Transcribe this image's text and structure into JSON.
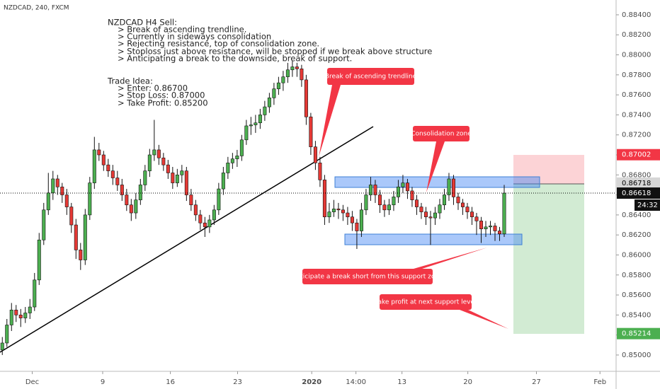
{
  "header": {
    "symbol": "NZDCAD, 240, FXCM"
  },
  "chart_data": {
    "type": "candlestick",
    "ohlc": [
      [
        0.8505,
        0.8518,
        0.85,
        0.8512
      ],
      [
        0.8512,
        0.8536,
        0.8508,
        0.853
      ],
      [
        0.853,
        0.8552,
        0.8524,
        0.8545
      ],
      [
        0.8545,
        0.855,
        0.8533,
        0.854
      ],
      [
        0.854,
        0.8546,
        0.8528,
        0.8537
      ],
      [
        0.8537,
        0.8548,
        0.8532,
        0.8542
      ],
      [
        0.8542,
        0.8556,
        0.8536,
        0.8548
      ],
      [
        0.8548,
        0.8582,
        0.8544,
        0.8575
      ],
      [
        0.8575,
        0.8622,
        0.857,
        0.8615
      ],
      [
        0.8615,
        0.8652,
        0.861,
        0.8645
      ],
      [
        0.8645,
        0.8682,
        0.864,
        0.8662
      ],
      [
        0.8662,
        0.8684,
        0.8655,
        0.8676
      ],
      [
        0.8676,
        0.868,
        0.866,
        0.8668
      ],
      [
        0.8668,
        0.8672,
        0.8652,
        0.866
      ],
      [
        0.866,
        0.8666,
        0.864,
        0.8648
      ],
      [
        0.8648,
        0.8652,
        0.8622,
        0.863
      ],
      [
        0.863,
        0.8636,
        0.8596,
        0.8605
      ],
      [
        0.8605,
        0.8612,
        0.8585,
        0.8595
      ],
      [
        0.8595,
        0.8646,
        0.859,
        0.864
      ],
      [
        0.864,
        0.8678,
        0.8635,
        0.8672
      ],
      [
        0.8672,
        0.8718,
        0.8666,
        0.8705
      ],
      [
        0.8705,
        0.8712,
        0.8694,
        0.87
      ],
      [
        0.87,
        0.8704,
        0.8684,
        0.869
      ],
      [
        0.869,
        0.8696,
        0.8678,
        0.8684
      ],
      [
        0.8684,
        0.869,
        0.867,
        0.8677
      ],
      [
        0.8677,
        0.8684,
        0.8664,
        0.867
      ],
      [
        0.867,
        0.8676,
        0.8654,
        0.866
      ],
      [
        0.866,
        0.8666,
        0.8644,
        0.865
      ],
      [
        0.865,
        0.8656,
        0.8634,
        0.8642
      ],
      [
        0.8642,
        0.8662,
        0.8636,
        0.8655
      ],
      [
        0.8655,
        0.8676,
        0.865,
        0.867
      ],
      [
        0.867,
        0.869,
        0.8664,
        0.8684
      ],
      [
        0.8684,
        0.8706,
        0.8678,
        0.87
      ],
      [
        0.87,
        0.8735,
        0.8694,
        0.8705
      ],
      [
        0.8705,
        0.871,
        0.869,
        0.8697
      ],
      [
        0.8697,
        0.8702,
        0.8684,
        0.869
      ],
      [
        0.869,
        0.8695,
        0.8676,
        0.8682
      ],
      [
        0.8682,
        0.8688,
        0.8666,
        0.8672
      ],
      [
        0.8672,
        0.8686,
        0.8668,
        0.868
      ],
      [
        0.868,
        0.869,
        0.8672,
        0.8684
      ],
      [
        0.8684,
        0.8688,
        0.8654,
        0.866
      ],
      [
        0.866,
        0.8666,
        0.8644,
        0.865
      ],
      [
        0.865,
        0.8655,
        0.8634,
        0.864
      ],
      [
        0.864,
        0.8645,
        0.8625,
        0.8632
      ],
      [
        0.8632,
        0.8638,
        0.8618,
        0.8628
      ],
      [
        0.8628,
        0.864,
        0.8622,
        0.8635
      ],
      [
        0.8635,
        0.865,
        0.863,
        0.8645
      ],
      [
        0.8645,
        0.8672,
        0.864,
        0.8666
      ],
      [
        0.8666,
        0.8688,
        0.866,
        0.8682
      ],
      [
        0.8682,
        0.8698,
        0.8676,
        0.8692
      ],
      [
        0.8692,
        0.8702,
        0.8686,
        0.8696
      ],
      [
        0.8696,
        0.8705,
        0.8688,
        0.8699
      ],
      [
        0.8699,
        0.872,
        0.8694,
        0.8715
      ],
      [
        0.8715,
        0.8735,
        0.871,
        0.8729
      ],
      [
        0.8729,
        0.8738,
        0.872,
        0.873
      ],
      [
        0.873,
        0.874,
        0.8722,
        0.8732
      ],
      [
        0.8732,
        0.8746,
        0.8726,
        0.874
      ],
      [
        0.874,
        0.8754,
        0.8734,
        0.8748
      ],
      [
        0.8748,
        0.8762,
        0.8742,
        0.8757
      ],
      [
        0.8757,
        0.8772,
        0.875,
        0.8766
      ],
      [
        0.8766,
        0.8778,
        0.876,
        0.8772
      ],
      [
        0.8772,
        0.8784,
        0.8764,
        0.8778
      ],
      [
        0.8778,
        0.8792,
        0.8772,
        0.8785
      ],
      [
        0.8785,
        0.8794,
        0.8778,
        0.8788
      ],
      [
        0.8788,
        0.8792,
        0.8778,
        0.8786
      ],
      [
        0.8786,
        0.879,
        0.8768,
        0.8775
      ],
      [
        0.8775,
        0.878,
        0.873,
        0.8738
      ],
      [
        0.8738,
        0.8742,
        0.87,
        0.8708
      ],
      [
        0.8708,
        0.8714,
        0.8685,
        0.8692
      ],
      [
        0.8692,
        0.8698,
        0.8668,
        0.8675
      ],
      [
        0.8675,
        0.868,
        0.863,
        0.8638
      ],
      [
        0.8638,
        0.8652,
        0.8632,
        0.8643
      ],
      [
        0.8643,
        0.8655,
        0.8638,
        0.8646
      ],
      [
        0.8646,
        0.8652,
        0.8636,
        0.8645
      ],
      [
        0.8645,
        0.865,
        0.8634,
        0.8642
      ],
      [
        0.8642,
        0.8648,
        0.863,
        0.8638
      ],
      [
        0.8638,
        0.8644,
        0.8624,
        0.8632
      ],
      [
        0.8632,
        0.8636,
        0.8606,
        0.8624
      ],
      [
        0.8624,
        0.8652,
        0.8618,
        0.8645
      ],
      [
        0.8645,
        0.8666,
        0.864,
        0.866
      ],
      [
        0.866,
        0.8678,
        0.8654,
        0.867
      ],
      [
        0.867,
        0.8675,
        0.8652,
        0.866
      ],
      [
        0.866,
        0.8665,
        0.8642,
        0.865
      ],
      [
        0.865,
        0.8655,
        0.8638,
        0.8645
      ],
      [
        0.8645,
        0.8656,
        0.864,
        0.865
      ],
      [
        0.865,
        0.8664,
        0.8644,
        0.8658
      ],
      [
        0.8658,
        0.8675,
        0.8652,
        0.8668
      ],
      [
        0.8668,
        0.868,
        0.8662,
        0.8672
      ],
      [
        0.8672,
        0.8676,
        0.8656,
        0.8664
      ],
      [
        0.8664,
        0.8668,
        0.8648,
        0.8655
      ],
      [
        0.8655,
        0.866,
        0.864,
        0.8648
      ],
      [
        0.8648,
        0.8652,
        0.8636,
        0.8643
      ],
      [
        0.8643,
        0.8648,
        0.863,
        0.8638
      ],
      [
        0.8638,
        0.8644,
        0.861,
        0.8637
      ],
      [
        0.8637,
        0.8648,
        0.863,
        0.8642
      ],
      [
        0.8642,
        0.8656,
        0.8636,
        0.865
      ],
      [
        0.865,
        0.8666,
        0.8645,
        0.866
      ],
      [
        0.866,
        0.8682,
        0.8654,
        0.8676
      ],
      [
        0.8676,
        0.868,
        0.865,
        0.8658
      ],
      [
        0.8658,
        0.8662,
        0.8645,
        0.8652
      ],
      [
        0.8652,
        0.8656,
        0.864,
        0.8648
      ],
      [
        0.8648,
        0.8652,
        0.8636,
        0.8643
      ],
      [
        0.8643,
        0.8648,
        0.863,
        0.8638
      ],
      [
        0.8638,
        0.8642,
        0.862,
        0.8634
      ],
      [
        0.8634,
        0.8638,
        0.8612,
        0.8626
      ],
      [
        0.8626,
        0.8634,
        0.8618,
        0.8628
      ],
      [
        0.8628,
        0.8634,
        0.862,
        0.8629
      ],
      [
        0.8629,
        0.8632,
        0.8614,
        0.8624
      ],
      [
        0.8624,
        0.8628,
        0.8614,
        0.8621
      ],
      [
        0.8621,
        0.867,
        0.8618,
        0.86618
      ]
    ],
    "xlim": [
      -0.5,
      133.3
    ],
    "xticks": [
      {
        "value": 6.5,
        "label": "Dec"
      },
      {
        "value": 21.8,
        "label": "9"
      },
      {
        "value": 36.5,
        "label": "16"
      },
      {
        "value": 51.1,
        "label": "23"
      },
      {
        "value": 67.2,
        "label": "2020"
      },
      {
        "value": 76.8,
        "label": "14:00"
      },
      {
        "value": 86.8,
        "label": "13"
      },
      {
        "value": 101.1,
        "label": "20"
      },
      {
        "value": 116,
        "label": "27"
      },
      {
        "value": 129.8,
        "label": "Feb"
      }
    ],
    "ylim": [
      0.84837,
      0.88548
    ],
    "yticks": [
      {
        "value": 0.85,
        "label": "0.85000"
      },
      {
        "value": 0.852,
        "label": "0.85200"
      },
      {
        "value": 0.854,
        "label": "0.85400"
      },
      {
        "value": 0.856,
        "label": "0.85600"
      },
      {
        "value": 0.858,
        "label": "0.85800"
      },
      {
        "value": 0.86,
        "label": "0.86000"
      },
      {
        "value": 0.862,
        "label": "0.86200"
      },
      {
        "value": 0.864,
        "label": "0.86400"
      },
      {
        "value": 0.866,
        "label": "0.86600"
      },
      {
        "value": 0.868,
        "label": "0.86800"
      },
      {
        "value": 0.87,
        "label": "0.87000"
      },
      {
        "value": 0.872,
        "label": "0.87200"
      },
      {
        "value": 0.874,
        "label": "0.87400"
      },
      {
        "value": 0.876,
        "label": "0.87600"
      },
      {
        "value": 0.878,
        "label": "0.87800"
      },
      {
        "value": 0.88,
        "label": "0.88000"
      },
      {
        "value": 0.882,
        "label": "0.88200"
      },
      {
        "value": 0.884,
        "label": "0.88400"
      }
    ],
    "grid": false,
    "colors": {
      "up": "#4caf50",
      "down": "#e53935"
    },
    "stop_loss": 0.87002,
    "entry": 0.86718,
    "last_price": 0.86618,
    "countdown": "24:32",
    "take_profit": 0.85214,
    "annotations": {
      "note": [
        "NZDCAD H4 Sell:",
        "> Break of ascending trendline.",
        "> Currently in sideways consolidation",
        "> Rejecting resistance, top of consolidation zone.",
        "> Stoploss just above resistance, will be stopped if we break above structure",
        "> Anticipating a break to the downside, break of support.",
        "Trade Idea:",
        "> Enter: 0.86700",
        "> Stop Loss: 0.87000",
        "> Take Profit: 0.85200"
      ],
      "callouts": [
        "Break of ascending trendline",
        "Consolidation zone",
        "Anticipate a break short from this support zone",
        "Take profit at next support level"
      ]
    }
  }
}
